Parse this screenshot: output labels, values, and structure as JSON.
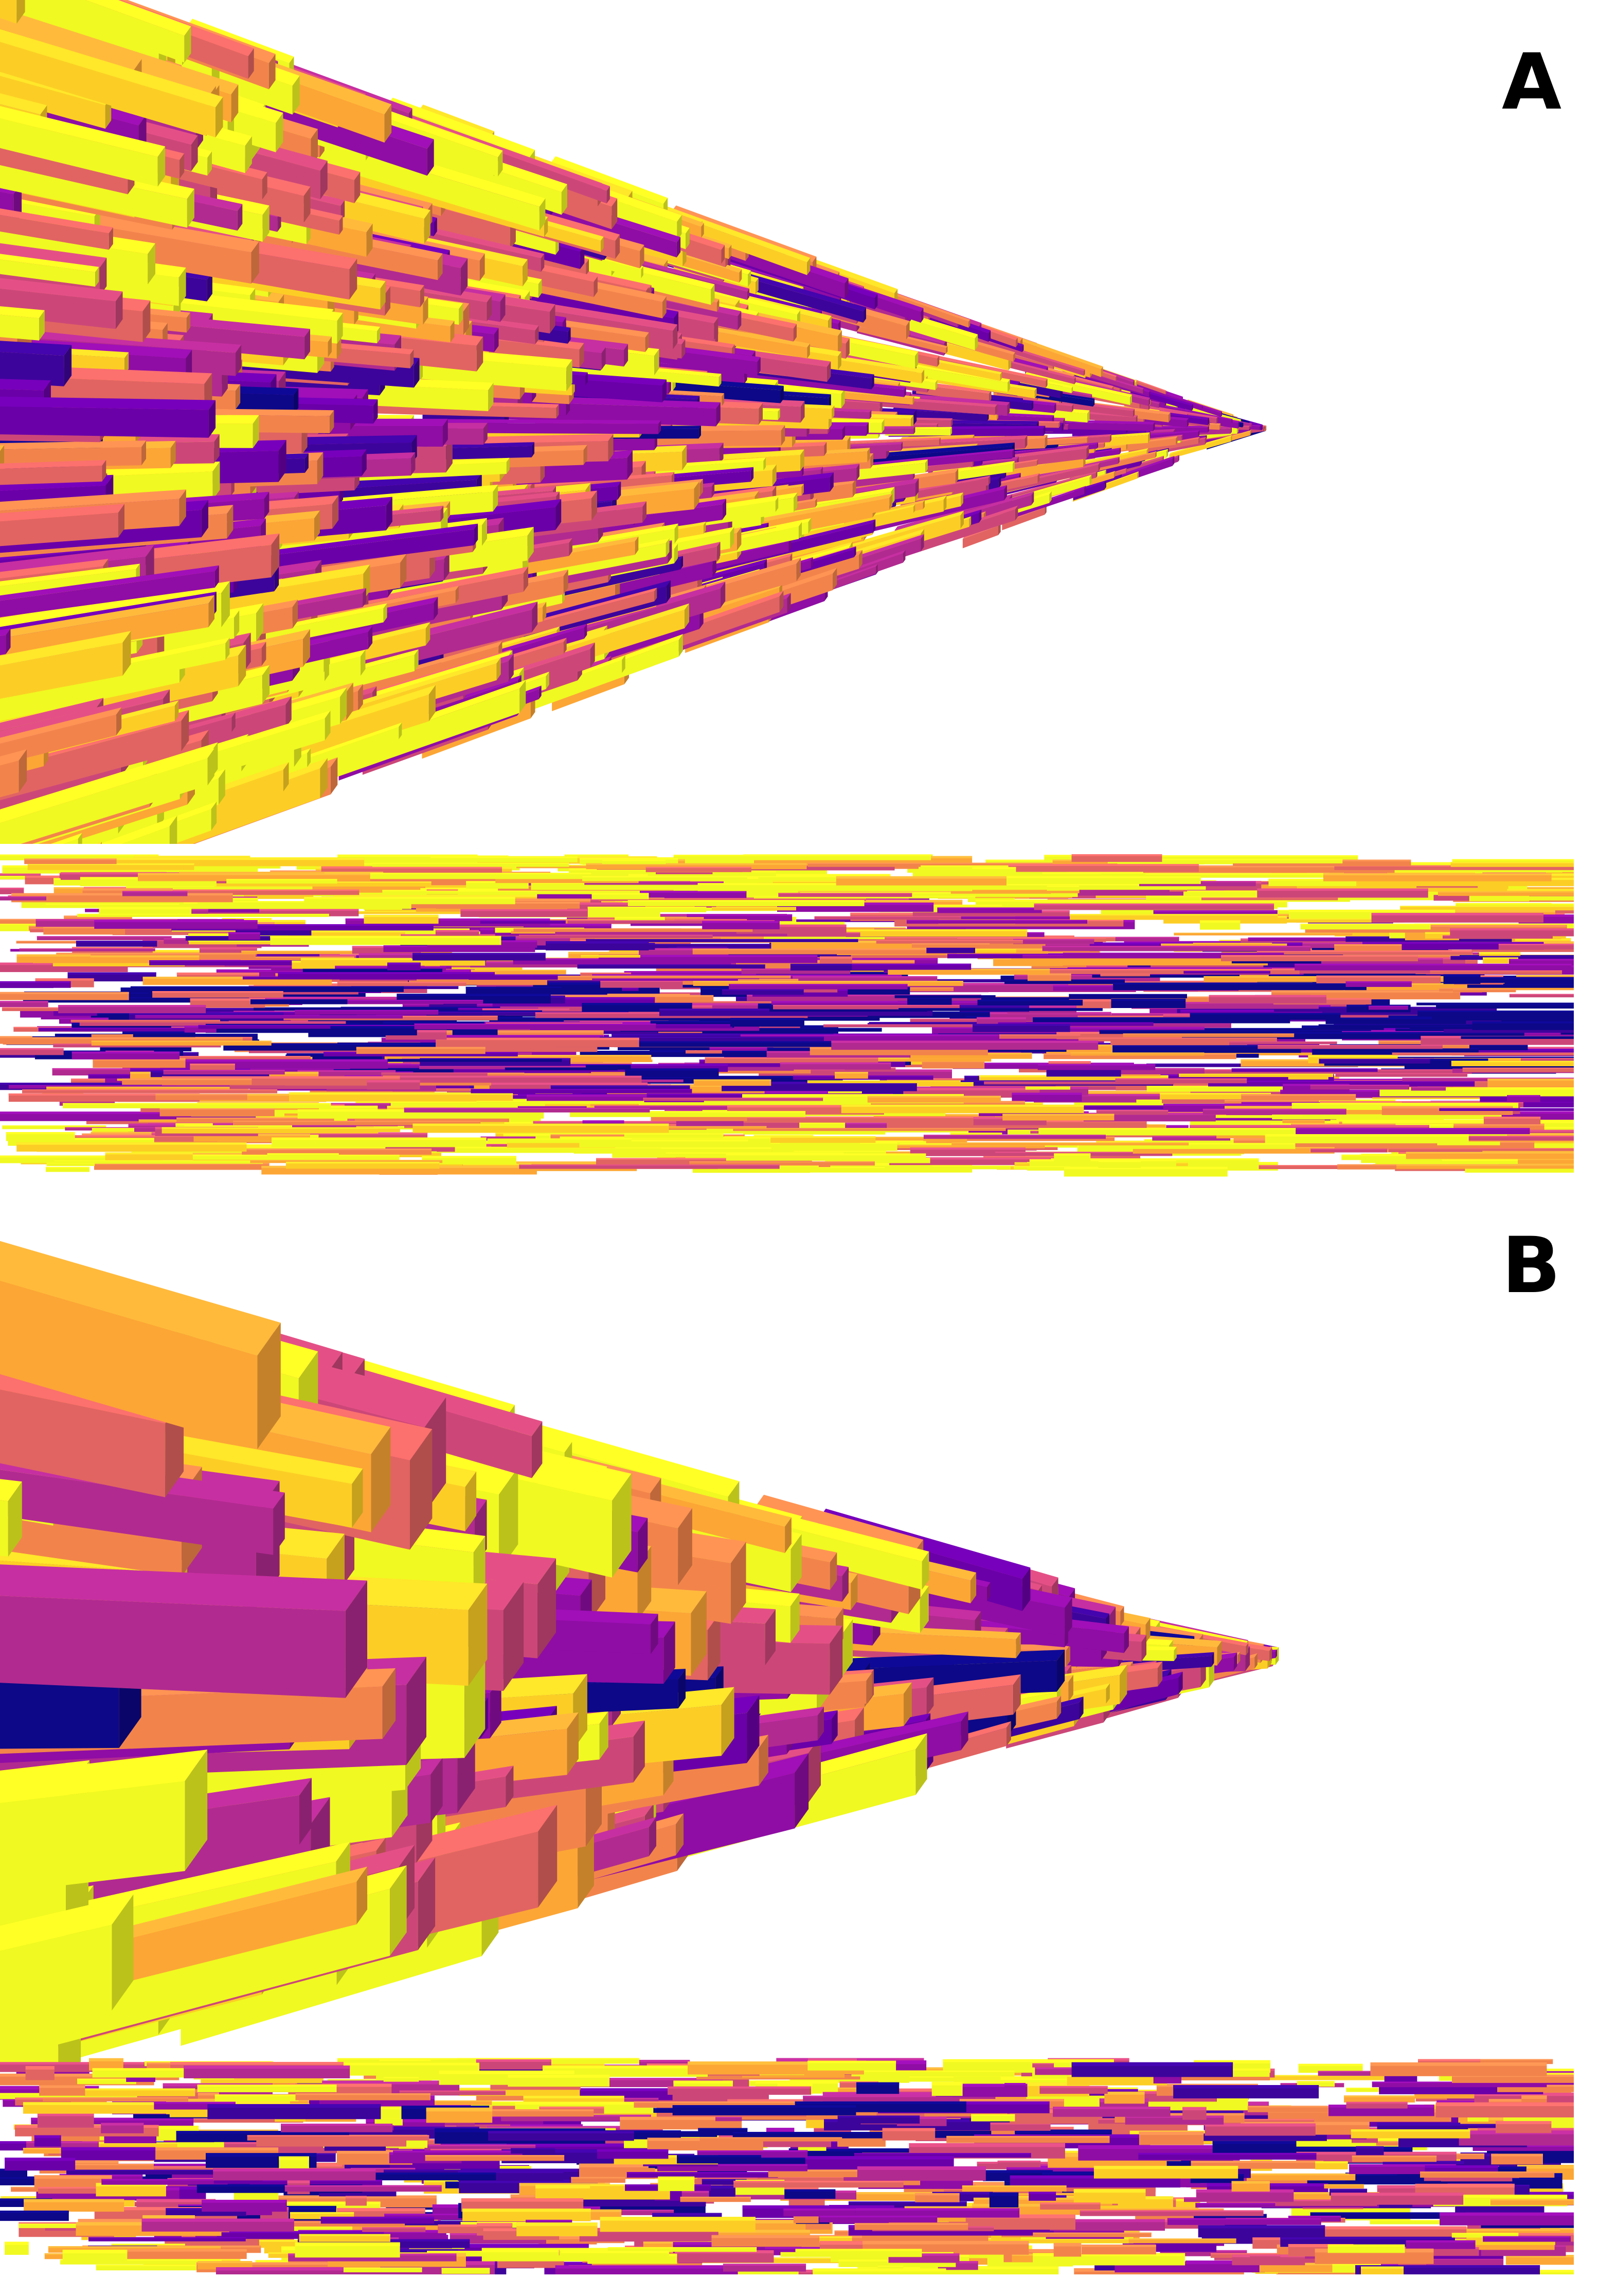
{
  "figure": {
    "panels": [
      {
        "label": "A",
        "views": [
          "perspective-view",
          "side-view"
        ],
        "style": "many-thin-bars"
      },
      {
        "label": "B",
        "views": [
          "perspective-view",
          "side-view"
        ],
        "style": "few-thick-bars"
      }
    ],
    "colors": {
      "background": "#ffffff",
      "palette": [
        "#0d0887",
        "#3d049b",
        "#6a00a8",
        "#8f0da4",
        "#b12a90",
        "#cc4778",
        "#e16462",
        "#f2844b",
        "#fca636",
        "#fcce25",
        "#f0f921"
      ],
      "label_color": "#000000"
    }
  }
}
